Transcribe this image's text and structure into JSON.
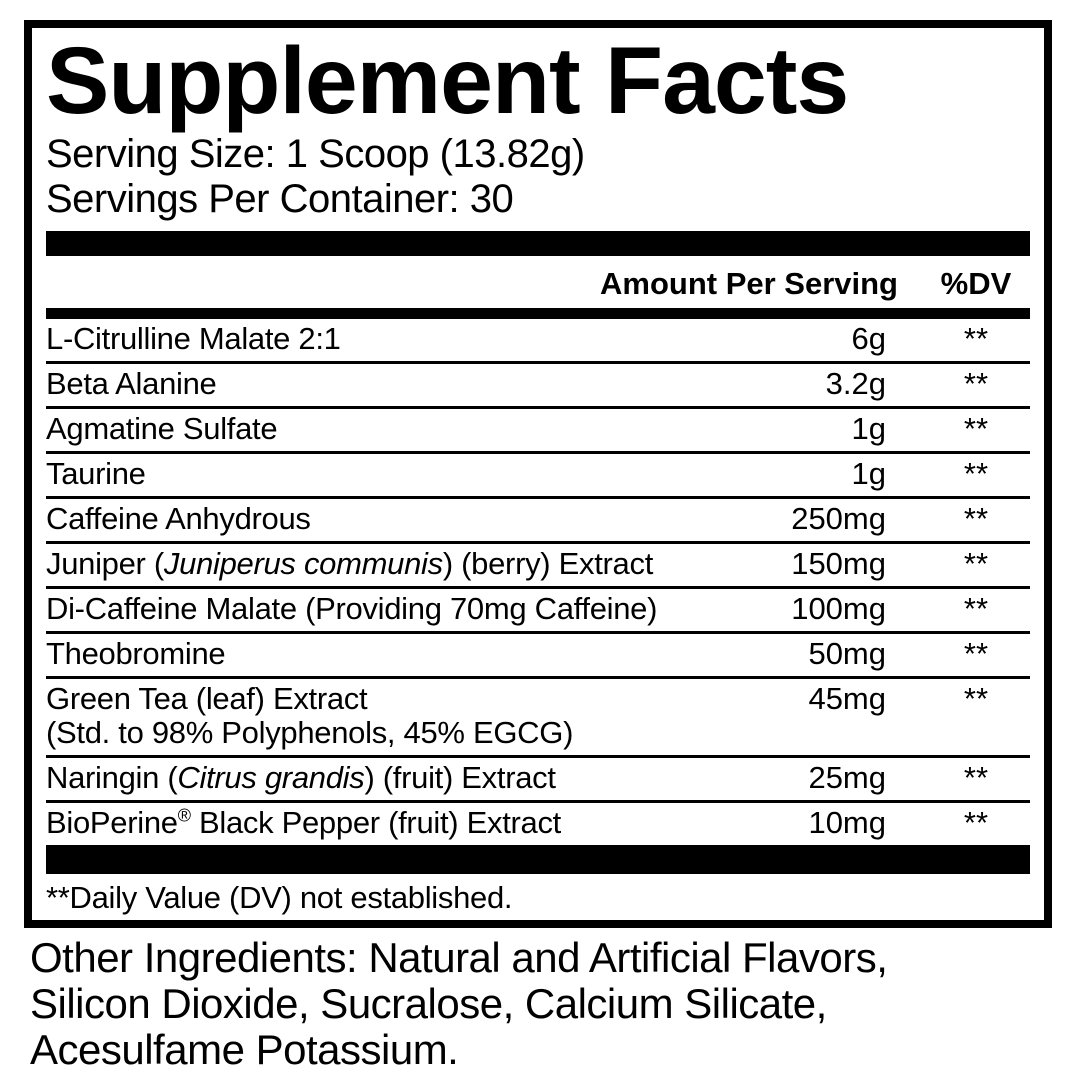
{
  "colors": {
    "ink": "#000000",
    "paper": "#ffffff"
  },
  "supplement_facts": {
    "title": "Supplement Facts",
    "serving_size": "Serving Size: 1 Scoop (13.82g)",
    "servings_per_container": "Servings Per Container: 30",
    "columns": {
      "amount_header": "Amount Per Serving",
      "dv_header": "%DV"
    },
    "rows": [
      {
        "name": [
          {
            "t": "L-Citrulline Malate 2:1"
          }
        ],
        "amount": "6g",
        "dv": "**"
      },
      {
        "name": [
          {
            "t": "Beta Alanine"
          }
        ],
        "amount": "3.2g",
        "dv": "**"
      },
      {
        "name": [
          {
            "t": "Agmatine Sulfate"
          }
        ],
        "amount": "1g",
        "dv": "**"
      },
      {
        "name": [
          {
            "t": "Taurine"
          }
        ],
        "amount": "1g",
        "dv": "**"
      },
      {
        "name": [
          {
            "t": "Caffeine Anhydrous"
          }
        ],
        "amount": "250mg",
        "dv": "**"
      },
      {
        "name": [
          {
            "t": "Juniper ("
          },
          {
            "t": "Juniperus communis",
            "italic": true
          },
          {
            "t": ") (berry) Extract"
          }
        ],
        "amount": "150mg",
        "dv": "**"
      },
      {
        "name": [
          {
            "t": "Di-Caffeine Malate (Providing 70mg Caffeine)"
          }
        ],
        "amount": "100mg",
        "dv": "**"
      },
      {
        "name": [
          {
            "t": "Theobromine"
          }
        ],
        "amount": "50mg",
        "dv": "**"
      },
      {
        "name": [
          {
            "t": "Green Tea (leaf) Extract"
          },
          {
            "br": true
          },
          {
            "t": "(Std. to 98% Polyphenols, 45% EGCG)"
          }
        ],
        "amount": "45mg",
        "dv": "**"
      },
      {
        "name": [
          {
            "t": "Naringin ("
          },
          {
            "t": "Citrus grandis",
            "italic": true
          },
          {
            "t": ") (fruit) Extract"
          }
        ],
        "amount": "25mg",
        "dv": "**"
      },
      {
        "name": [
          {
            "t": "BioPerine"
          },
          {
            "t": "®",
            "sup": true
          },
          {
            "t": " Black Pepper (fruit) Extract"
          }
        ],
        "amount": "10mg",
        "dv": "**"
      }
    ],
    "footnote": "**Daily Value (DV) not established.",
    "other_ingredients_lines": [
      "Other Ingredients: Natural and Artificial Flavors,",
      "Silicon Dioxide, Sucralose, Calcium Silicate,",
      "Acesulfame Potassium."
    ]
  }
}
